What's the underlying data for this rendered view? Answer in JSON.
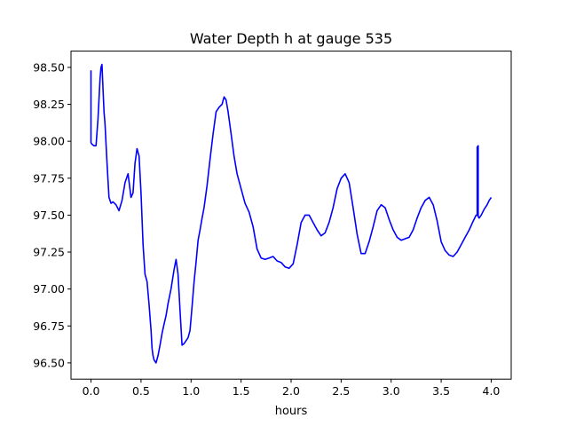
{
  "chart_data": {
    "type": "line",
    "title": "Water Depth h at gauge 535",
    "xlabel": "hours",
    "ylabel": "",
    "xlim": [
      -0.2,
      4.2
    ],
    "ylim": [
      96.39,
      98.61
    ],
    "xticks": [
      0.0,
      0.5,
      1.0,
      1.5,
      2.0,
      2.5,
      3.0,
      3.5,
      4.0
    ],
    "xtick_labels": [
      "0.0",
      "0.5",
      "1.0",
      "1.5",
      "2.0",
      "2.5",
      "3.0",
      "3.5",
      "4.0"
    ],
    "yticks": [
      96.5,
      96.75,
      97.0,
      97.25,
      97.5,
      97.75,
      98.0,
      98.25,
      98.5
    ],
    "ytick_labels": [
      "96.50",
      "96.75",
      "97.00",
      "97.25",
      "97.50",
      "97.75",
      "98.00",
      "98.25",
      "98.50"
    ],
    "grid": false,
    "series": [
      {
        "color": "#0000ff",
        "x": [
          0.0,
          0.0,
          0.01,
          0.03,
          0.05,
          0.07,
          0.09,
          0.1,
          0.11,
          0.12,
          0.13,
          0.14,
          0.16,
          0.18,
          0.2,
          0.22,
          0.25,
          0.28,
          0.31,
          0.34,
          0.37,
          0.4,
          0.42,
          0.44,
          0.46,
          0.48,
          0.5,
          0.52,
          0.54,
          0.56,
          0.58,
          0.6,
          0.61,
          0.62,
          0.63,
          0.65,
          0.67,
          0.69,
          0.71,
          0.73,
          0.75,
          0.77,
          0.8,
          0.83,
          0.85,
          0.87,
          0.89,
          0.91,
          0.93,
          0.95,
          0.97,
          0.99,
          1.01,
          1.03,
          1.05,
          1.07,
          1.09,
          1.11,
          1.13,
          1.16,
          1.19,
          1.22,
          1.25,
          1.28,
          1.31,
          1.33,
          1.35,
          1.37,
          1.4,
          1.43,
          1.46,
          1.5,
          1.54,
          1.58,
          1.62,
          1.66,
          1.7,
          1.74,
          1.78,
          1.82,
          1.86,
          1.9,
          1.94,
          1.98,
          2.02,
          2.06,
          2.1,
          2.14,
          2.18,
          2.22,
          2.26,
          2.3,
          2.34,
          2.38,
          2.42,
          2.46,
          2.5,
          2.54,
          2.58,
          2.62,
          2.66,
          2.7,
          2.74,
          2.78,
          2.82,
          2.86,
          2.9,
          2.94,
          2.98,
          3.02,
          3.06,
          3.1,
          3.14,
          3.18,
          3.22,
          3.26,
          3.3,
          3.34,
          3.38,
          3.42,
          3.46,
          3.5,
          3.54,
          3.58,
          3.62,
          3.66,
          3.7,
          3.74,
          3.78,
          3.82,
          3.85,
          3.86,
          3.86,
          3.87,
          3.87,
          3.88,
          3.9,
          3.93,
          3.96,
          3.98,
          4.0
        ],
        "values": [
          98.48,
          97.99,
          97.98,
          97.97,
          97.97,
          98.15,
          98.42,
          98.5,
          98.52,
          98.35,
          98.2,
          98.12,
          97.85,
          97.62,
          97.58,
          97.59,
          97.57,
          97.53,
          97.6,
          97.72,
          97.78,
          97.62,
          97.65,
          97.85,
          97.95,
          97.9,
          97.65,
          97.3,
          97.1,
          97.05,
          96.9,
          96.72,
          96.6,
          96.55,
          96.52,
          96.5,
          96.55,
          96.62,
          96.7,
          96.76,
          96.82,
          96.9,
          97.0,
          97.13,
          97.2,
          97.1,
          96.85,
          96.62,
          96.63,
          96.65,
          96.67,
          96.72,
          96.88,
          97.05,
          97.18,
          97.33,
          97.4,
          97.48,
          97.55,
          97.7,
          97.88,
          98.05,
          98.2,
          98.23,
          98.25,
          98.3,
          98.28,
          98.2,
          98.05,
          97.9,
          97.78,
          97.68,
          97.58,
          97.52,
          97.42,
          97.27,
          97.21,
          97.2,
          97.21,
          97.22,
          97.19,
          97.18,
          97.15,
          97.14,
          97.17,
          97.3,
          97.45,
          97.5,
          97.5,
          97.45,
          97.4,
          97.36,
          97.38,
          97.45,
          97.55,
          97.68,
          97.75,
          97.78,
          97.72,
          97.55,
          97.37,
          97.24,
          97.24,
          97.32,
          97.42,
          97.53,
          97.57,
          97.55,
          97.47,
          97.4,
          97.35,
          97.33,
          97.34,
          97.35,
          97.4,
          97.48,
          97.55,
          97.6,
          97.62,
          97.57,
          97.46,
          97.32,
          97.26,
          97.23,
          97.22,
          97.25,
          97.3,
          97.35,
          97.4,
          97.46,
          97.5,
          97.5,
          97.96,
          97.97,
          97.49,
          97.48,
          97.5,
          97.54,
          97.57,
          97.6,
          97.62
        ]
      }
    ]
  }
}
